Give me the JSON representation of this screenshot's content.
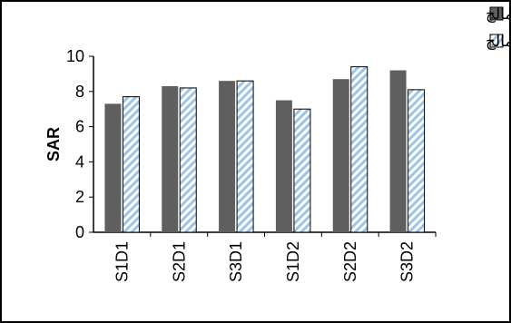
{
  "chart_data": {
    "type": "bar",
    "categories": [
      "S1D1",
      "S2D1",
      "S3D1",
      "S1D2",
      "S2D2",
      "S3D2"
    ],
    "series": [
      {
        "name": "بدون مالچ",
        "values": [
          7.3,
          8.3,
          8.6,
          7.5,
          8.7,
          9.2
        ],
        "color": "#5f5f5f",
        "pattern": "solid"
      },
      {
        "name": "با مالچ",
        "values": [
          7.7,
          8.2,
          8.6,
          7.0,
          9.4,
          8.1
        ],
        "color": "#9dc3e6",
        "pattern": "diagonal-hatch"
      }
    ],
    "ylabel": "SAR",
    "ylim": [
      0,
      10
    ],
    "yticks": [
      "0",
      "2",
      "4",
      "6",
      "8",
      "10"
    ],
    "grid": false,
    "legend_position": "top-right"
  }
}
